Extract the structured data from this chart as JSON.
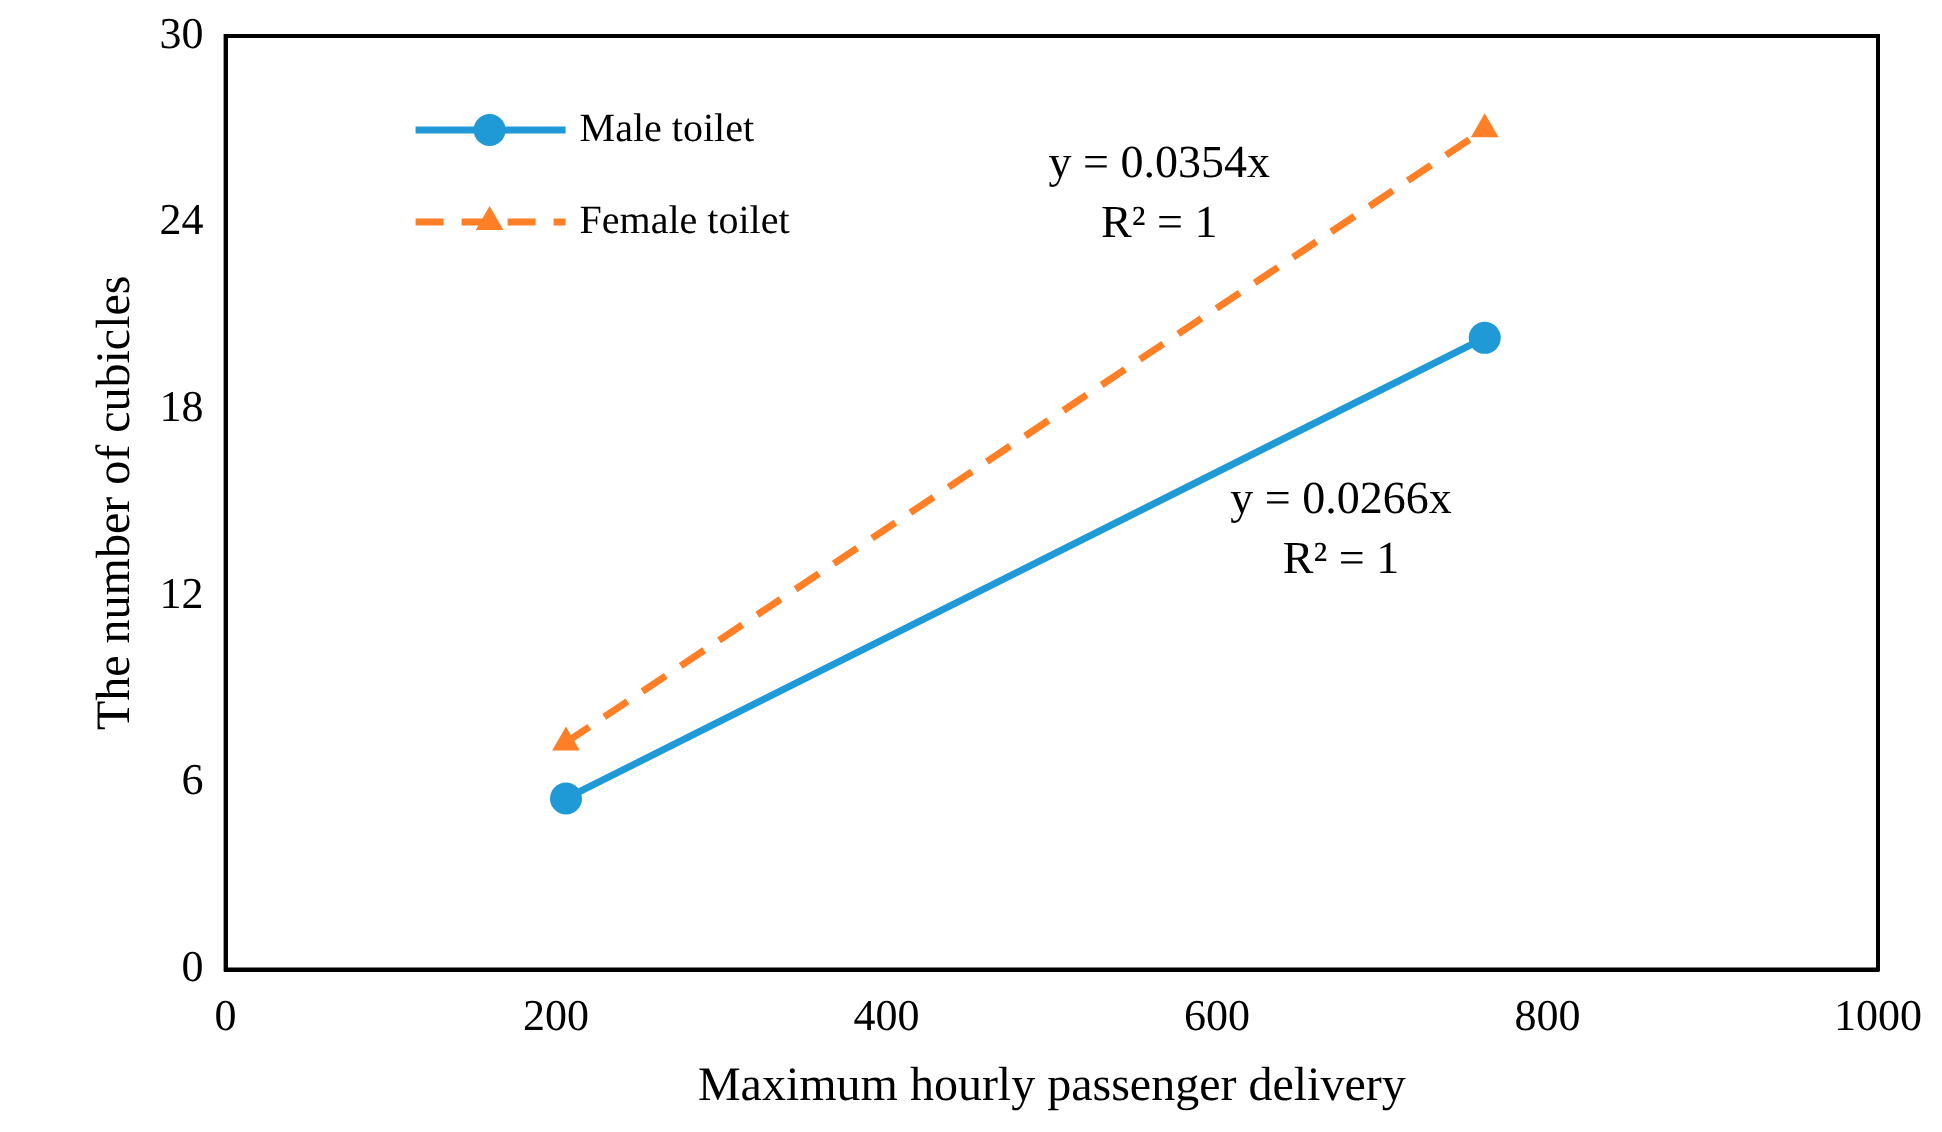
{
  "chart_data": {
    "type": "line",
    "xlabel": "Maximum hourly passenger delivery",
    "ylabel": "The number of cubicles",
    "x": [
      206,
      762
    ],
    "series": [
      {
        "name": "Male toilet",
        "color": "#1f9ad6",
        "values": [
          5.5,
          20.3
        ],
        "marker": "circle",
        "line_style": "solid"
      },
      {
        "name": "Female toilet",
        "color": "#ff7f27",
        "values": [
          7.3,
          27.0
        ],
        "marker": "triangle",
        "line_style": "dashed"
      }
    ],
    "annotations": [
      "y = 0.0354x\nR² = 1",
      "y = 0.0266x\nR² = 1"
    ],
    "xlim": [
      0,
      1000
    ],
    "xticks": [
      0,
      200,
      400,
      600,
      800,
      1000
    ],
    "ylim": [
      0,
      30
    ],
    "yticks": [
      0,
      6,
      12,
      18,
      24,
      30
    ],
    "grid": false,
    "legend": "top left"
  }
}
